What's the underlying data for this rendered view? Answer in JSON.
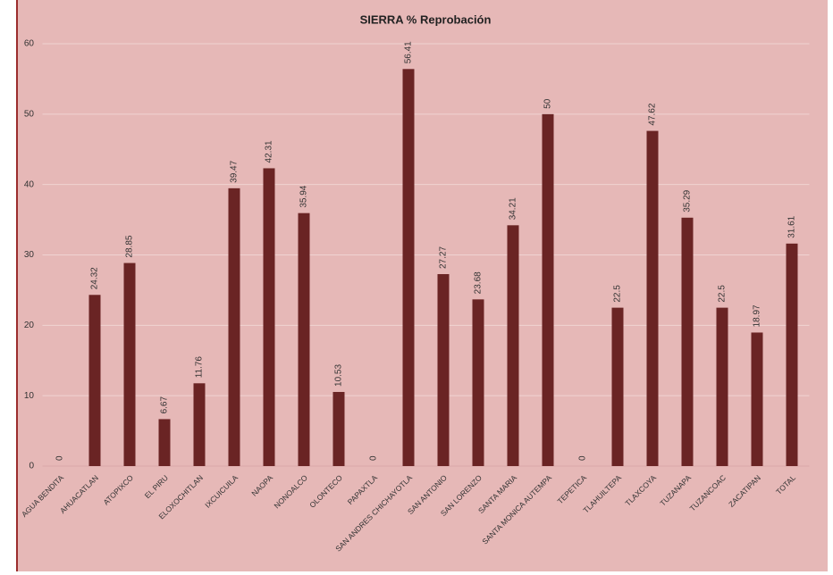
{
  "chart_data": {
    "type": "bar",
    "title": "SIERRA % Reprobación",
    "categories": [
      "AGUA BENDITA",
      "AHUACATLAN",
      "ATOPIXCO",
      "EL PIRU",
      "ELOXOCHITLAN",
      "IXCUICUILA",
      "NAOPA",
      "NONOALCO",
      "OLONTECO",
      "PAPAXTLA",
      "SAN ANDRES CHICHAYOTLA",
      "SAN ANTONIO",
      "SAN LORENZO",
      "SANTA MARIA",
      "SANTA MONICA AUTEMPA",
      "TEPETICA",
      "TLAHUILTEPA",
      "TLAXCOYA",
      "TUZANAPA",
      "TUZANCOAC",
      "ZACATIPAN",
      "TOTAL"
    ],
    "values": [
      0,
      24.32,
      28.85,
      6.67,
      11.76,
      39.47,
      42.31,
      35.94,
      10.53,
      0,
      56.41,
      27.27,
      23.68,
      34.21,
      50,
      0,
      22.5,
      47.62,
      35.29,
      22.5,
      18.97,
      31.61
    ],
    "color": "#6a2424",
    "ylim": [
      0,
      60
    ],
    "yticks": [
      0,
      10,
      20,
      30,
      40,
      50,
      60
    ],
    "grid": true
  }
}
